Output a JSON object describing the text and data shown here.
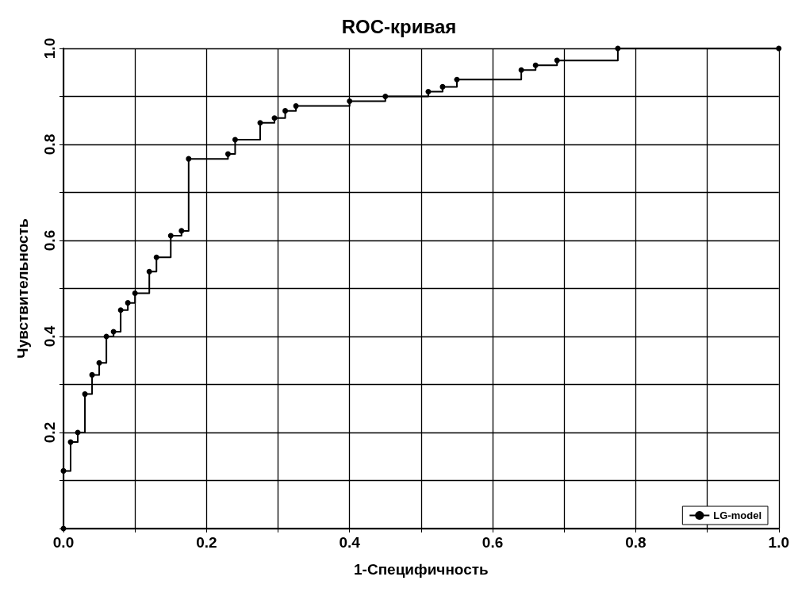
{
  "chart_data": {
    "type": "step",
    "title": "ROC-кривая",
    "xlabel": "1-Специфичность",
    "ylabel": "Чувствительность",
    "xlim": [
      0,
      1
    ],
    "ylim": [
      0,
      1
    ],
    "xticks": [
      {
        "value": 0,
        "label": "0.0"
      },
      {
        "value": 0.1,
        "label": null
      },
      0.2,
      {
        "value": 0.3,
        "label": null
      },
      0.4,
      {
        "value": 0.5,
        "label": null
      },
      0.6,
      {
        "value": 0.7,
        "label": null
      },
      0.8,
      {
        "value": 0.9,
        "label": null
      },
      {
        "value": 1,
        "label": "1.0"
      }
    ],
    "yticks": [
      {
        "value": 0,
        "label": null
      },
      {
        "value": 0.1,
        "label": null
      },
      0.2,
      {
        "value": 0.3,
        "label": null
      },
      0.4,
      {
        "value": 0.5,
        "label": null
      },
      0.6,
      {
        "value": 0.7,
        "label": null
      },
      0.8,
      {
        "value": 0.9,
        "label": null
      },
      {
        "value": 1,
        "label": "1.0"
      }
    ],
    "grid": true,
    "legend": "bottom right",
    "marker": "circle",
    "line_style": "solid",
    "series": [
      {
        "name": "LG-model",
        "color": "#000000",
        "x": [
          0,
          0,
          0.01,
          0.02,
          0.03,
          0.04,
          0.05,
          0.06,
          0.07,
          0.08,
          0.09,
          0.1,
          0.12,
          0.13,
          0.15,
          0.165,
          0.175,
          0.23,
          0.24,
          0.275,
          0.295,
          0.31,
          0.325,
          0.4,
          0.45,
          0.51,
          0.53,
          0.55,
          0.64,
          0.66,
          0.69,
          0.775,
          1
        ],
        "values": [
          0,
          0.12,
          0.18,
          0.2,
          0.28,
          0.32,
          0.345,
          0.4,
          0.41,
          0.455,
          0.47,
          0.49,
          0.535,
          0.565,
          0.61,
          0.62,
          0.77,
          0.78,
          0.81,
          0.845,
          0.855,
          0.87,
          0.88,
          0.89,
          0.9,
          0.91,
          0.92,
          0.935,
          0.955,
          0.965,
          0.975,
          1,
          1
        ]
      }
    ]
  }
}
